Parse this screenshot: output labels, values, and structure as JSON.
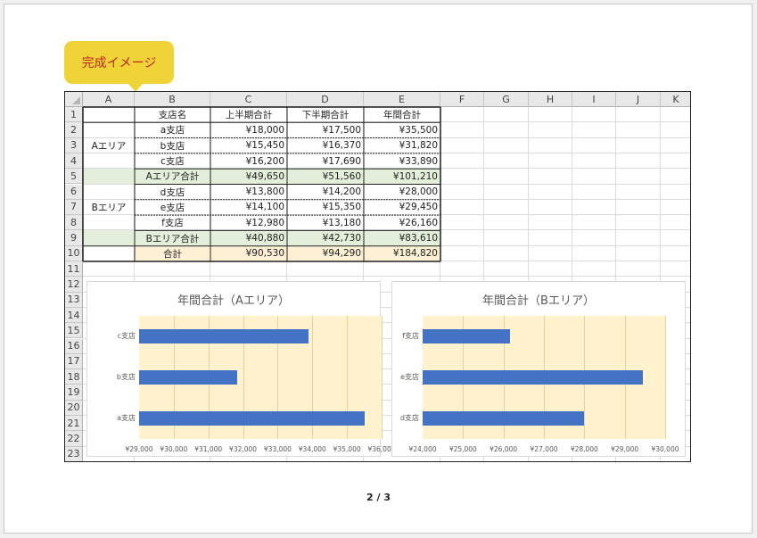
{
  "callout": {
    "label": "完成イメージ"
  },
  "columns": [
    "A",
    "B",
    "C",
    "D",
    "E",
    "F",
    "G",
    "H",
    "I",
    "J",
    "K"
  ],
  "rows": [
    "1",
    "2",
    "3",
    "4",
    "5",
    "6",
    "7",
    "8",
    "9",
    "10",
    "11",
    "12",
    "13",
    "14",
    "15",
    "16",
    "17",
    "18",
    "19",
    "20",
    "21",
    "22",
    "23"
  ],
  "table": {
    "headers": [
      "支店名",
      "上半期合計",
      "下半期合計",
      "年間合計"
    ],
    "areas": [
      "Aエリア",
      "Bエリア"
    ],
    "body": [
      [
        "a支店",
        "¥18,000",
        "¥17,500",
        "¥35,500"
      ],
      [
        "b支店",
        "¥15,450",
        "¥16,370",
        "¥31,820"
      ],
      [
        "c支店",
        "¥16,200",
        "¥17,690",
        "¥33,890"
      ],
      [
        "Aエリア合計",
        "¥49,650",
        "¥51,560",
        "¥101,210"
      ],
      [
        "d支店",
        "¥13,800",
        "¥14,200",
        "¥28,000"
      ],
      [
        "e支店",
        "¥14,100",
        "¥15,350",
        "¥29,450"
      ],
      [
        "f支店",
        "¥12,980",
        "¥13,180",
        "¥26,160"
      ],
      [
        "Bエリア合計",
        "¥40,880",
        "¥42,730",
        "¥83,610"
      ],
      [
        "合計",
        "¥90,530",
        "¥94,290",
        "¥184,820"
      ]
    ]
  },
  "chart_data": [
    {
      "type": "bar",
      "orientation": "horizontal",
      "title": "年間合計（Aエリア）",
      "categories": [
        "c支店",
        "b支店",
        "a支店"
      ],
      "values": [
        33890,
        31820,
        35500
      ],
      "xlim": [
        29000,
        36000
      ],
      "ticks": [
        "¥29,000",
        "¥30,000",
        "¥31,000",
        "¥32,000",
        "¥33,000",
        "¥34,000",
        "¥35,000",
        "¥36,000"
      ],
      "grid": true,
      "bar_color": "#4472c4",
      "plot_bg": "#fff2cc"
    },
    {
      "type": "bar",
      "orientation": "horizontal",
      "title": "年間合計（Bエリア）",
      "categories": [
        "f支店",
        "e支店",
        "d支店"
      ],
      "values": [
        26160,
        29450,
        28000
      ],
      "xlim": [
        24000,
        30000
      ],
      "ticks": [
        "¥24,000",
        "¥25,000",
        "¥26,000",
        "¥27,000",
        "¥28,000",
        "¥29,000",
        "¥30,000"
      ],
      "grid": true,
      "bar_color": "#4472c4",
      "plot_bg": "#fff2cc"
    }
  ],
  "page_indicator": "2 / 3"
}
